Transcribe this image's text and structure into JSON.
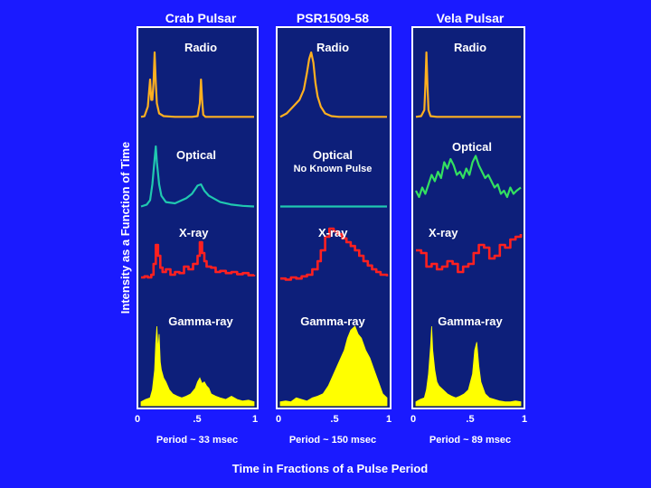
{
  "colors": {
    "background": "#1a1aff",
    "panel_fill": "#0d1f7a",
    "panel_border": "#ffffff",
    "radio": "#ffb020",
    "optical": "#20c8b0",
    "optical_vela": "#33e060",
    "xray": "#ff2020",
    "gamma": "#ffff00"
  },
  "chart_data": {
    "type": "line",
    "ylabel": "Intensity as a Function of Time",
    "xlabel": "Time in Fractions of a Pulse Period",
    "xlim": [
      0,
      1
    ],
    "panels": [
      {
        "id": "crab",
        "title": "Crab Pulsar",
        "period_label": "Period ~ 33 msec",
        "x_ticks": [
          "0",
          ".5",
          "1"
        ],
        "bands": [
          {
            "name": "Radio",
            "x": [
              0,
              0.03,
              0.06,
              0.08,
              0.09,
              0.1,
              0.11,
              0.12,
              0.13,
              0.14,
              0.16,
              0.2,
              0.3,
              0.45,
              0.5,
              0.52,
              0.53,
              0.54,
              0.55,
              0.57,
              0.7,
              0.85,
              1.0
            ],
            "y": [
              0.05,
              0.06,
              0.2,
              0.6,
              0.3,
              0.3,
              0.55,
              1.0,
              0.55,
              0.25,
              0.1,
              0.06,
              0.05,
              0.05,
              0.06,
              0.25,
              0.6,
              0.3,
              0.08,
              0.05,
              0.05,
              0.05,
              0.05
            ]
          },
          {
            "name": "Optical",
            "x": [
              0,
              0.05,
              0.08,
              0.1,
              0.12,
              0.13,
              0.14,
              0.16,
              0.18,
              0.22,
              0.3,
              0.4,
              0.45,
              0.5,
              0.53,
              0.56,
              0.6,
              0.7,
              0.8,
              0.9,
              1.0
            ],
            "y": [
              0.05,
              0.08,
              0.15,
              0.4,
              0.8,
              1.0,
              0.75,
              0.4,
              0.22,
              0.12,
              0.1,
              0.18,
              0.25,
              0.38,
              0.4,
              0.3,
              0.22,
              0.12,
              0.08,
              0.06,
              0.05
            ]
          },
          {
            "name": "X-ray",
            "x": [
              0,
              0.03,
              0.06,
              0.09,
              0.11,
              0.13,
              0.15,
              0.17,
              0.19,
              0.22,
              0.26,
              0.3,
              0.34,
              0.38,
              0.42,
              0.46,
              0.5,
              0.52,
              0.54,
              0.56,
              0.58,
              0.62,
              0.66,
              0.7,
              0.75,
              0.8,
              0.85,
              0.9,
              0.95,
              1.0
            ],
            "y": [
              0.1,
              0.12,
              0.1,
              0.15,
              0.35,
              0.7,
              0.5,
              0.28,
              0.2,
              0.25,
              0.15,
              0.2,
              0.18,
              0.3,
              0.25,
              0.35,
              0.5,
              0.75,
              0.55,
              0.4,
              0.3,
              0.28,
              0.2,
              0.22,
              0.18,
              0.2,
              0.16,
              0.18,
              0.14,
              0.15
            ]
          },
          {
            "name": "Gamma-ray",
            "x": [
              0,
              0.04,
              0.08,
              0.1,
              0.12,
              0.13,
              0.14,
              0.15,
              0.16,
              0.17,
              0.18,
              0.2,
              0.22,
              0.25,
              0.28,
              0.32,
              0.36,
              0.4,
              0.44,
              0.48,
              0.5,
              0.52,
              0.54,
              0.56,
              0.58,
              0.6,
              0.62,
              0.66,
              0.7,
              0.75,
              0.8,
              0.85,
              0.9,
              0.95,
              1.0
            ],
            "y": [
              0.05,
              0.08,
              0.1,
              0.2,
              0.45,
              0.8,
              1.0,
              0.7,
              0.9,
              0.55,
              0.45,
              0.35,
              0.3,
              0.2,
              0.15,
              0.12,
              0.1,
              0.12,
              0.15,
              0.22,
              0.3,
              0.35,
              0.28,
              0.3,
              0.25,
              0.22,
              0.15,
              0.12,
              0.1,
              0.08,
              0.12,
              0.08,
              0.06,
              0.07,
              0.05
            ]
          }
        ]
      },
      {
        "id": "psr1509",
        "title": "PSR1509-58",
        "period_label": "Period ~ 150 msec",
        "x_ticks": [
          "0",
          ".5",
          "1"
        ],
        "no_pulse_note": "No Known Pulse",
        "bands": [
          {
            "name": "Radio",
            "x": [
              0,
              0.06,
              0.12,
              0.18,
              0.22,
              0.25,
              0.27,
              0.29,
              0.31,
              0.33,
              0.35,
              0.38,
              0.42,
              0.48,
              0.55,
              0.65,
              0.75,
              0.85,
              1.0
            ],
            "y": [
              0.05,
              0.1,
              0.2,
              0.3,
              0.45,
              0.7,
              0.9,
              1.0,
              0.85,
              0.55,
              0.35,
              0.2,
              0.1,
              0.06,
              0.05,
              0.05,
              0.05,
              0.05,
              0.05
            ]
          },
          {
            "name": "Optical",
            "x": [
              0,
              1.0
            ],
            "y": [
              0.05,
              0.05
            ]
          },
          {
            "name": "X-ray",
            "x": [
              0,
              0.05,
              0.1,
              0.15,
              0.2,
              0.25,
              0.3,
              0.35,
              0.38,
              0.42,
              0.46,
              0.5,
              0.54,
              0.58,
              0.62,
              0.66,
              0.7,
              0.74,
              0.78,
              0.82,
              0.86,
              0.9,
              0.94,
              1.0
            ],
            "y": [
              0.08,
              0.06,
              0.1,
              0.08,
              0.12,
              0.15,
              0.25,
              0.4,
              0.6,
              0.85,
              1.0,
              0.95,
              0.9,
              0.82,
              0.75,
              0.68,
              0.6,
              0.5,
              0.4,
              0.32,
              0.25,
              0.2,
              0.15,
              0.12
            ]
          },
          {
            "name": "Gamma-ray",
            "x": [
              0,
              0.05,
              0.1,
              0.15,
              0.2,
              0.25,
              0.3,
              0.35,
              0.4,
              0.45,
              0.5,
              0.55,
              0.6,
              0.63,
              0.66,
              0.7,
              0.73,
              0.76,
              0.8,
              0.84,
              0.88,
              0.92,
              0.96,
              1.0
            ],
            "y": [
              0.05,
              0.06,
              0.05,
              0.1,
              0.08,
              0.06,
              0.1,
              0.12,
              0.15,
              0.25,
              0.4,
              0.55,
              0.7,
              0.85,
              0.95,
              1.0,
              0.9,
              0.85,
              0.7,
              0.6,
              0.45,
              0.3,
              0.15,
              0.1
            ]
          }
        ]
      },
      {
        "id": "vela",
        "title": "Vela Pulsar",
        "period_label": "Period ~ 89 msec",
        "x_ticks": [
          "0",
          ".5",
          "1"
        ],
        "bands": [
          {
            "name": "Radio",
            "x": [
              0,
              0.05,
              0.08,
              0.09,
              0.1,
              0.11,
              0.12,
              0.14,
              0.2,
              0.4,
              0.6,
              0.8,
              1.0
            ],
            "y": [
              0.05,
              0.06,
              0.15,
              0.5,
              1.0,
              0.5,
              0.15,
              0.06,
              0.05,
              0.05,
              0.05,
              0.05,
              0.05
            ]
          },
          {
            "name": "Optical",
            "x": [
              0,
              0.03,
              0.06,
              0.09,
              0.12,
              0.15,
              0.18,
              0.21,
              0.24,
              0.27,
              0.3,
              0.33,
              0.36,
              0.39,
              0.42,
              0.45,
              0.48,
              0.51,
              0.54,
              0.57,
              0.6,
              0.63,
              0.66,
              0.69,
              0.72,
              0.75,
              0.78,
              0.81,
              0.84,
              0.87,
              0.9,
              0.93,
              0.96,
              1.0
            ],
            "y": [
              0.3,
              0.2,
              0.35,
              0.25,
              0.4,
              0.55,
              0.45,
              0.6,
              0.5,
              0.75,
              0.65,
              0.8,
              0.7,
              0.55,
              0.6,
              0.5,
              0.65,
              0.55,
              0.75,
              0.85,
              0.7,
              0.6,
              0.5,
              0.55,
              0.45,
              0.35,
              0.4,
              0.25,
              0.3,
              0.2,
              0.35,
              0.25,
              0.3,
              0.35
            ]
          },
          {
            "name": "X-ray",
            "x": [
              0,
              0.05,
              0.1,
              0.15,
              0.2,
              0.25,
              0.3,
              0.35,
              0.4,
              0.45,
              0.5,
              0.55,
              0.6,
              0.65,
              0.7,
              0.75,
              0.8,
              0.85,
              0.9,
              0.95,
              1.0
            ],
            "y": [
              0.6,
              0.55,
              0.3,
              0.35,
              0.25,
              0.3,
              0.4,
              0.35,
              0.2,
              0.3,
              0.35,
              0.55,
              0.7,
              0.65,
              0.45,
              0.5,
              0.7,
              0.65,
              0.8,
              0.85,
              0.9
            ]
          },
          {
            "name": "Gamma-ray",
            "x": [
              0,
              0.04,
              0.08,
              0.1,
              0.12,
              0.14,
              0.15,
              0.16,
              0.18,
              0.2,
              0.22,
              0.26,
              0.3,
              0.34,
              0.38,
              0.42,
              0.46,
              0.5,
              0.54,
              0.56,
              0.58,
              0.6,
              0.62,
              0.66,
              0.7,
              0.75,
              0.8,
              0.85,
              0.9,
              0.95,
              1.0
            ],
            "y": [
              0.05,
              0.08,
              0.1,
              0.2,
              0.4,
              0.75,
              1.0,
              0.7,
              0.45,
              0.3,
              0.25,
              0.2,
              0.15,
              0.12,
              0.1,
              0.12,
              0.15,
              0.2,
              0.4,
              0.7,
              0.8,
              0.5,
              0.3,
              0.15,
              0.1,
              0.08,
              0.06,
              0.05,
              0.05,
              0.06,
              0.05
            ]
          }
        ]
      }
    ]
  }
}
